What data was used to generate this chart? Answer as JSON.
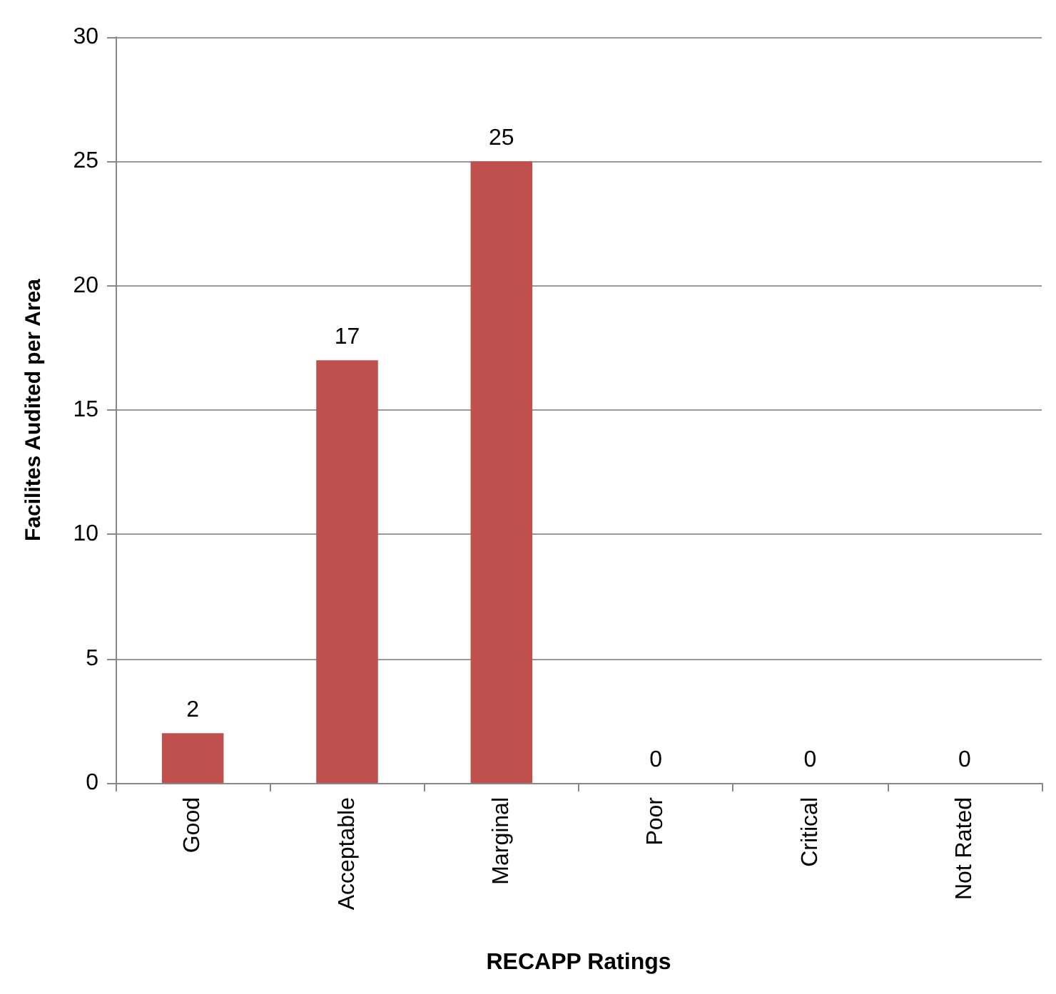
{
  "chart_data": {
    "type": "bar",
    "xlabel": "RECAPP Ratings",
    "ylabel": "Facilites Audited per Area",
    "categories": [
      "Good",
      "Acceptable",
      "Marginal",
      "Poor",
      "Critical",
      "Not Rated"
    ],
    "values": [
      2,
      17,
      25,
      0,
      0,
      0
    ],
    "color": "#c0504d",
    "ylim": [
      0,
      30
    ],
    "yticks": [
      0,
      5,
      10,
      15,
      20,
      25,
      30
    ],
    "grid": "y",
    "data_labels": true
  }
}
